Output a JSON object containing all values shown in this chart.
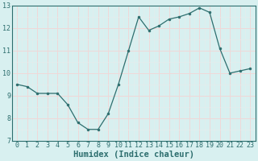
{
  "x": [
    0,
    1,
    2,
    3,
    4,
    5,
    6,
    7,
    8,
    9,
    10,
    11,
    12,
    13,
    14,
    15,
    16,
    17,
    18,
    19,
    20,
    21,
    22,
    23
  ],
  "y": [
    9.5,
    9.4,
    9.1,
    9.1,
    9.1,
    8.6,
    7.8,
    7.5,
    7.5,
    8.2,
    9.5,
    11.0,
    12.5,
    11.9,
    12.1,
    12.4,
    12.5,
    12.65,
    12.9,
    12.7,
    11.1,
    10.0,
    10.1,
    10.2
  ],
  "xlabel": "Humidex (Indice chaleur)",
  "ylim": [
    7,
    13
  ],
  "xlim": [
    -0.5,
    23.5
  ],
  "yticks": [
    7,
    8,
    9,
    10,
    11,
    12,
    13
  ],
  "xticks": [
    0,
    1,
    2,
    3,
    4,
    5,
    6,
    7,
    8,
    9,
    10,
    11,
    12,
    13,
    14,
    15,
    16,
    17,
    18,
    19,
    20,
    21,
    22,
    23
  ],
  "xtick_labels": [
    "0",
    "1",
    "2",
    "3",
    "4",
    "5",
    "6",
    "7",
    "8",
    "9",
    "10",
    "11",
    "12",
    "13",
    "14",
    "15",
    "16",
    "17",
    "18",
    "19",
    "20",
    "21",
    "22",
    "23"
  ],
  "line_color": "#2d6e6e",
  "marker": "o",
  "marker_size": 2.0,
  "bg_color": "#d8f0f0",
  "plot_bg_color": "#d8f0f0",
  "grid_major_color": "#f0d8d8",
  "grid_minor_color": "#e8ecec",
  "xlabel_fontsize": 7.5,
  "tick_fontsize": 6.0,
  "figsize": [
    3.2,
    2.0
  ],
  "dpi": 100
}
